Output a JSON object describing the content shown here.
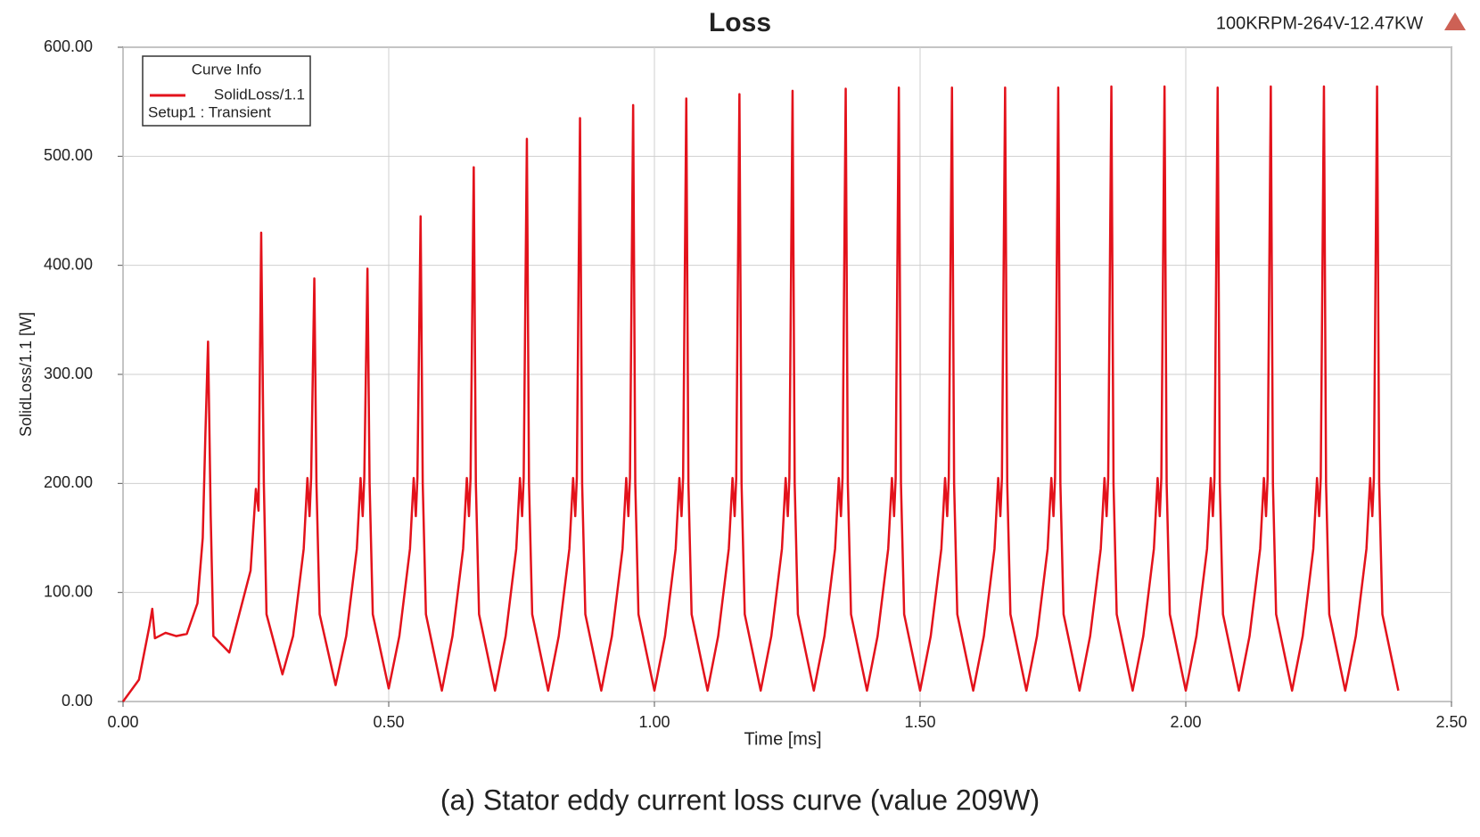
{
  "chart_data": {
    "type": "line",
    "title": "Loss",
    "subtitle": "100KRPM-264V-12.47KW",
    "caption": "(a) Stator eddy current loss curve (value 209W)",
    "xlabel": "Time [ms]",
    "ylabel": "SolidLoss/1.1 [W]",
    "legend_title": "Curve Info",
    "legend_note": "Setup1 : Transient",
    "legend": "upper left",
    "grid": true,
    "xlim": [
      0,
      2.5
    ],
    "ylim": [
      0,
      600
    ],
    "xticks": [
      {
        "value": 0,
        "label": "0.00"
      },
      {
        "value": 0.5,
        "label": "0.50"
      },
      {
        "value": 1,
        "label": "1.00"
      },
      {
        "value": 1.5,
        "label": "1.50"
      },
      {
        "value": 2,
        "label": "2.00"
      },
      {
        "value": 2.5,
        "label": "2.50"
      }
    ],
    "yticks": [
      {
        "value": 0,
        "label": "0.00"
      },
      {
        "value": 100,
        "label": "100.00"
      },
      {
        "value": 200,
        "label": "200.00"
      },
      {
        "value": 300,
        "label": "300.00"
      },
      {
        "value": 400,
        "label": "400.00"
      },
      {
        "value": 500,
        "label": "500.00"
      },
      {
        "value": 600,
        "label": "600.00"
      }
    ],
    "x": [
      0,
      0.03,
      0.05,
      0.055,
      0.06,
      0.08,
      0.1,
      0.12,
      0.14,
      0.15,
      0.155,
      0.16,
      0.165,
      0.17,
      0.2,
      0.24,
      0.25,
      0.255,
      0.26,
      0.265,
      0.27,
      0.3,
      0.32,
      0.34,
      0.347,
      0.351,
      0.354,
      0.36,
      0.364,
      0.37,
      0.4,
      0.42,
      0.44,
      0.447,
      0.451,
      0.454,
      0.46,
      0.464,
      0.47,
      0.5,
      0.52,
      0.54,
      0.547,
      0.551,
      0.554,
      0.56,
      0.564,
      0.57,
      0.6,
      0.62,
      0.64,
      0.647,
      0.651,
      0.654,
      0.66,
      0.664,
      0.67,
      0.7,
      0.72,
      0.74,
      0.747,
      0.751,
      0.754,
      0.76,
      0.764,
      0.77,
      0.8,
      0.82,
      0.84,
      0.847,
      0.851,
      0.854,
      0.86,
      0.864,
      0.87,
      0.9,
      0.92,
      0.94,
      0.947,
      0.951,
      0.954,
      0.96,
      0.964,
      0.97,
      1.0,
      1.02,
      1.04,
      1.047,
      1.051,
      1.054,
      1.06,
      1.064,
      1.07,
      1.1,
      1.12,
      1.14,
      1.147,
      1.151,
      1.154,
      1.16,
      1.164,
      1.17,
      1.2,
      1.22,
      1.24,
      1.247,
      1.251,
      1.254,
      1.26,
      1.264,
      1.27,
      1.3,
      1.32,
      1.34,
      1.347,
      1.351,
      1.354,
      1.36,
      1.364,
      1.37,
      1.4,
      1.42,
      1.44,
      1.447,
      1.451,
      1.454,
      1.46,
      1.464,
      1.47,
      1.5,
      1.52,
      1.54,
      1.547,
      1.551,
      1.554,
      1.56,
      1.564,
      1.57,
      1.6,
      1.62,
      1.64,
      1.647,
      1.651,
      1.654,
      1.66,
      1.664,
      1.67,
      1.7,
      1.72,
      1.74,
      1.747,
      1.751,
      1.754,
      1.76,
      1.764,
      1.77,
      1.8,
      1.82,
      1.84,
      1.847,
      1.851,
      1.854,
      1.86,
      1.864,
      1.87,
      1.9,
      1.92,
      1.94,
      1.947,
      1.951,
      1.954,
      1.96,
      1.964,
      1.97,
      2.0,
      2.02,
      2.04,
      2.047,
      2.051,
      2.054,
      2.06,
      2.064,
      2.07,
      2.1,
      2.12,
      2.14,
      2.147,
      2.151,
      2.154,
      2.16,
      2.164,
      2.17,
      2.2,
      2.22,
      2.24,
      2.247,
      2.251,
      2.254,
      2.26,
      2.264,
      2.27,
      2.3,
      2.32,
      2.34,
      2.347,
      2.351,
      2.354,
      2.36,
      2.364,
      2.37,
      2.4
    ],
    "series": [
      {
        "name": "SolidLoss/1.1",
        "color": "#e3121b",
        "values": [
          0,
          20,
          70,
          85,
          58,
          63,
          60,
          62,
          90,
          150,
          245,
          330,
          170,
          60,
          45,
          120,
          195,
          175,
          430,
          200,
          80,
          25,
          60,
          140,
          205,
          170,
          205,
          388,
          200,
          80,
          15,
          60,
          140,
          205,
          170,
          205,
          397,
          200,
          80,
          12,
          60,
          140,
          205,
          170,
          205,
          445,
          200,
          80,
          10,
          60,
          140,
          205,
          170,
          205,
          490,
          200,
          80,
          10,
          60,
          140,
          205,
          170,
          205,
          516,
          200,
          80,
          10,
          60,
          140,
          205,
          170,
          205,
          535,
          200,
          80,
          10,
          60,
          140,
          205,
          170,
          205,
          547,
          200,
          80,
          10,
          60,
          140,
          205,
          170,
          205,
          553,
          200,
          80,
          10,
          60,
          140,
          205,
          170,
          205,
          557,
          200,
          80,
          10,
          60,
          140,
          205,
          170,
          205,
          560,
          200,
          80,
          10,
          60,
          140,
          205,
          170,
          205,
          562,
          200,
          80,
          10,
          60,
          140,
          205,
          170,
          205,
          563,
          200,
          80,
          10,
          60,
          140,
          205,
          170,
          205,
          563,
          200,
          80,
          10,
          60,
          140,
          205,
          170,
          205,
          563,
          200,
          80,
          10,
          60,
          140,
          205,
          170,
          205,
          563,
          200,
          80,
          10,
          60,
          140,
          205,
          170,
          205,
          564,
          200,
          80,
          10,
          60,
          140,
          205,
          170,
          205,
          564,
          200,
          80,
          10,
          60,
          140,
          205,
          170,
          205,
          563,
          200,
          80,
          10,
          60,
          140,
          205,
          170,
          205,
          564,
          200,
          80,
          10,
          60,
          140,
          205,
          170,
          205,
          564,
          200,
          80,
          10,
          60,
          140,
          205,
          170,
          205,
          564,
          200,
          80,
          10
        ]
      }
    ]
  }
}
